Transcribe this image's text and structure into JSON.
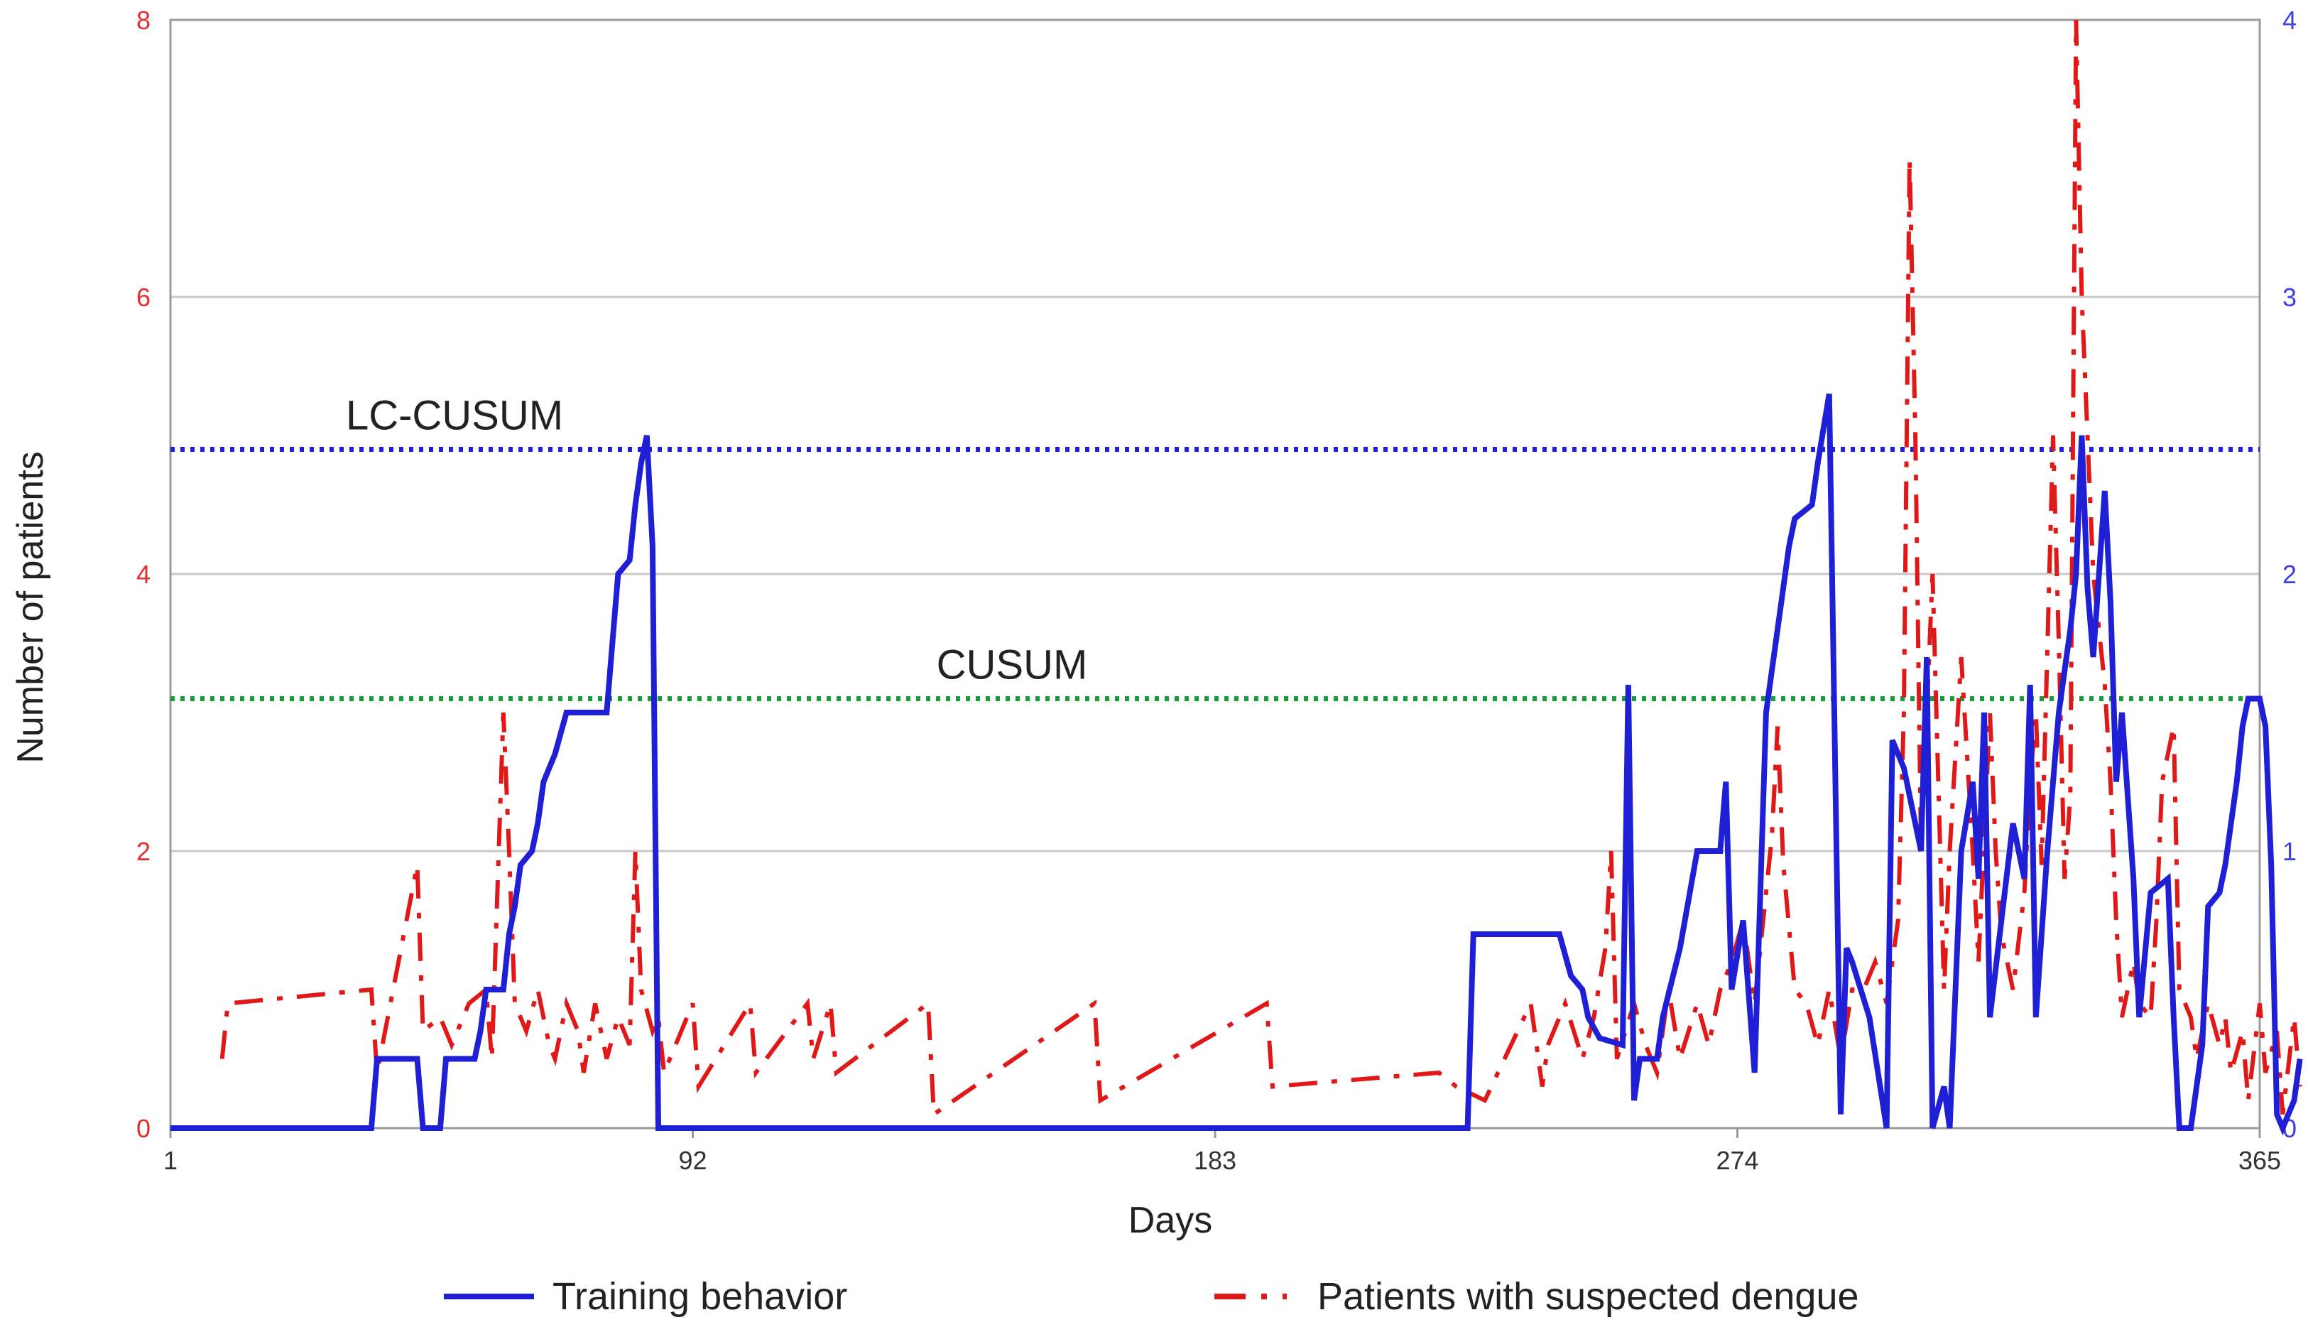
{
  "chart_data": {
    "type": "line",
    "title": "",
    "xlabel": "Days",
    "ylabel": "Number of patients",
    "xlim": [
      1,
      365
    ],
    "ylim_left": [
      0,
      8
    ],
    "ylim_right": [
      0,
      4
    ],
    "x_ticks": [
      "1",
      "92",
      "183",
      "274",
      "365"
    ],
    "y_ticks_left": [
      "0",
      "2",
      "4",
      "6",
      "8"
    ],
    "y_ticks_right": [
      "0",
      "1",
      "2",
      "3",
      "4"
    ],
    "grid": "horizontal",
    "legend_position": "bottom",
    "reference_lines": [
      {
        "label": "LC-CUSUM",
        "value": 4.9,
        "color": "#1f1fd6",
        "style": "dotted"
      },
      {
        "label": "CUSUM",
        "value": 3.1,
        "color": "#1a9a3a",
        "style": "dotted"
      }
    ],
    "series": [
      {
        "name": "Training behavior",
        "color": "#1f1fd6",
        "style": "solid",
        "points": [
          [
            1,
            0
          ],
          [
            36,
            0
          ],
          [
            37,
            0.5
          ],
          [
            38,
            0.5
          ],
          [
            44,
            0.5
          ],
          [
            45,
            0
          ],
          [
            48,
            0
          ],
          [
            49,
            0.5
          ],
          [
            54,
            0.5
          ],
          [
            55,
            0.7
          ],
          [
            56,
            1
          ],
          [
            59,
            1
          ],
          [
            60,
            1.4
          ],
          [
            61,
            1.6
          ],
          [
            62,
            1.9
          ],
          [
            64,
            2
          ],
          [
            65,
            2.2
          ],
          [
            66,
            2.5
          ],
          [
            68,
            2.7
          ],
          [
            70,
            3.0
          ],
          [
            77,
            3.0
          ],
          [
            78,
            3.5
          ],
          [
            79,
            4
          ],
          [
            81,
            4.1
          ],
          [
            82,
            4.5
          ],
          [
            83,
            4.8
          ],
          [
            84,
            5.0
          ],
          [
            85,
            4.2
          ],
          [
            86,
            0
          ],
          [
            227,
            0
          ],
          [
            228,
            1.4
          ],
          [
            243,
            1.4
          ],
          [
            245,
            1.1
          ],
          [
            247,
            1.0
          ],
          [
            248,
            0.8
          ],
          [
            250,
            0.65
          ],
          [
            254,
            0.6
          ],
          [
            255,
            3.2
          ],
          [
            256,
            0.2
          ],
          [
            257,
            0.5
          ],
          [
            260,
            0.5
          ],
          [
            261,
            0.8
          ],
          [
            264,
            1.3
          ],
          [
            267,
            2.0
          ],
          [
            271,
            2.0
          ],
          [
            272,
            2.5
          ],
          [
            273,
            1.0
          ],
          [
            275,
            1.5
          ],
          [
            277,
            0.4
          ],
          [
            279,
            3.0
          ],
          [
            283,
            4.2
          ],
          [
            284,
            4.4
          ],
          [
            287,
            4.5
          ],
          [
            288,
            4.8
          ],
          [
            290,
            5.3
          ],
          [
            292,
            0.1
          ],
          [
            293,
            1.3
          ],
          [
            294,
            1.2
          ],
          [
            297,
            0.8
          ],
          [
            300,
            0
          ],
          [
            301,
            2.8
          ],
          [
            303,
            2.6
          ],
          [
            306,
            2.0
          ],
          [
            307,
            3.4
          ],
          [
            308,
            0
          ],
          [
            310,
            0.3
          ],
          [
            311,
            0
          ],
          [
            313,
            2.0
          ],
          [
            315,
            2.5
          ],
          [
            316,
            1.8
          ],
          [
            317,
            3.0
          ],
          [
            318,
            0.8
          ],
          [
            320,
            1.5
          ],
          [
            322,
            2.2
          ],
          [
            324,
            1.8
          ],
          [
            325,
            3.2
          ],
          [
            326,
            0.8
          ],
          [
            328,
            2.0
          ],
          [
            330,
            3.0
          ],
          [
            332,
            3.6
          ],
          [
            333,
            4.0
          ],
          [
            334,
            5.0
          ],
          [
            335,
            3.9
          ],
          [
            336,
            3.4
          ],
          [
            337,
            4.0
          ],
          [
            338,
            4.6
          ],
          [
            339,
            3.8
          ],
          [
            340,
            2.5
          ],
          [
            341,
            3.0
          ],
          [
            343,
            1.8
          ],
          [
            344,
            0.8
          ],
          [
            346,
            1.7
          ],
          [
            349,
            1.8
          ],
          [
            350,
            0.8
          ],
          [
            351,
            0
          ],
          [
            353,
            0
          ],
          [
            355,
            0.6
          ],
          [
            356,
            1.6
          ],
          [
            358,
            1.7
          ],
          [
            359,
            1.9
          ],
          [
            361,
            2.5
          ],
          [
            362,
            2.9
          ],
          [
            363,
            3.1
          ],
          [
            365,
            3.1
          ],
          [
            366,
            2.9
          ],
          [
            367,
            1.9
          ],
          [
            368,
            0.1
          ],
          [
            369,
            0
          ],
          [
            371,
            0.2
          ],
          [
            372,
            0.5
          ]
        ]
      },
      {
        "name": "Patients with suspected dengue",
        "color": "#e01818",
        "style": "dash-dot",
        "points": [
          [
            10,
            0.5
          ],
          [
            11,
            0.9
          ],
          [
            36,
            1
          ],
          [
            37,
            0.4
          ],
          [
            44,
            1.9
          ],
          [
            45,
            0.7
          ],
          [
            48,
            0.8
          ],
          [
            50,
            0.6
          ],
          [
            53,
            0.9
          ],
          [
            56,
            1.0
          ],
          [
            57,
            0.5
          ],
          [
            59,
            3.0
          ],
          [
            60,
            2.0
          ],
          [
            61,
            0.9
          ],
          [
            63,
            0.7
          ],
          [
            65,
            1.0
          ],
          [
            67,
            0.6
          ],
          [
            68,
            0.5
          ],
          [
            70,
            0.9
          ],
          [
            72,
            0.7
          ],
          [
            73,
            0.4
          ],
          [
            75,
            0.9
          ],
          [
            77,
            0.5
          ],
          [
            79,
            0.8
          ],
          [
            81,
            0.6
          ],
          [
            82,
            2.0
          ],
          [
            83,
            1.0
          ],
          [
            85,
            0.7
          ],
          [
            86,
            0.8
          ],
          [
            87,
            0.4
          ],
          [
            88,
            0.5
          ],
          [
            92,
            0.9
          ],
          [
            93,
            0.3
          ],
          [
            102,
            0.9
          ],
          [
            103,
            0.4
          ],
          [
            112,
            0.9
          ],
          [
            113,
            0.5
          ],
          [
            116,
            0.9
          ],
          [
            117,
            0.4
          ],
          [
            133,
            0.9
          ],
          [
            134,
            0.1
          ],
          [
            162,
            0.9
          ],
          [
            163,
            0.2
          ],
          [
            192,
            0.9
          ],
          [
            193,
            0.3
          ],
          [
            222,
            0.4
          ],
          [
            225,
            0.3
          ],
          [
            230,
            0.2
          ],
          [
            238,
            0.9
          ],
          [
            240,
            0.3
          ],
          [
            241,
            0.6
          ],
          [
            244,
            0.9
          ],
          [
            247,
            0.5
          ],
          [
            249,
            0.8
          ],
          [
            251,
            1.3
          ],
          [
            252,
            2.0
          ],
          [
            253,
            0.5
          ],
          [
            256,
            0.9
          ],
          [
            258,
            0.6
          ],
          [
            260,
            0.4
          ],
          [
            262,
            1.0
          ],
          [
            264,
            0.5
          ],
          [
            267,
            0.9
          ],
          [
            269,
            0.6
          ],
          [
            271,
            1.0
          ],
          [
            273,
            1.2
          ],
          [
            275,
            1.5
          ],
          [
            277,
            0.9
          ],
          [
            278,
            1.3
          ],
          [
            280,
            2.1
          ],
          [
            281,
            2.9
          ],
          [
            282,
            1.9
          ],
          [
            284,
            1.0
          ],
          [
            286,
            0.9
          ],
          [
            288,
            0.6
          ],
          [
            290,
            1.0
          ],
          [
            292,
            0.5
          ],
          [
            294,
            1.0
          ],
          [
            296,
            1.0
          ],
          [
            298,
            1.2
          ],
          [
            300,
            0.9
          ],
          [
            302,
            1.5
          ],
          [
            303,
            3.0
          ],
          [
            304,
            7.0
          ],
          [
            305,
            5.0
          ],
          [
            306,
            2.0
          ],
          [
            308,
            4.0
          ],
          [
            309,
            2.5
          ],
          [
            310,
            1.0
          ],
          [
            311,
            2.0
          ],
          [
            313,
            3.4
          ],
          [
            315,
            2.0
          ],
          [
            316,
            1.2
          ],
          [
            318,
            3.0
          ],
          [
            319,
            2.0
          ],
          [
            320,
            1.4
          ],
          [
            322,
            1.0
          ],
          [
            324,
            1.7
          ],
          [
            325,
            2.5
          ],
          [
            326,
            3.0
          ],
          [
            327,
            1.9
          ],
          [
            329,
            5.0
          ],
          [
            330,
            3.5
          ],
          [
            331,
            1.8
          ],
          [
            332,
            2.4
          ],
          [
            333,
            8.0
          ],
          [
            334,
            6.0
          ],
          [
            335,
            5.0
          ],
          [
            336,
            4.0
          ],
          [
            338,
            3.2
          ],
          [
            339,
            2.5
          ],
          [
            340,
            1.5
          ],
          [
            341,
            0.8
          ],
          [
            343,
            1.2
          ],
          [
            344,
            0.9
          ],
          [
            346,
            0.8
          ],
          [
            347,
            1.5
          ],
          [
            348,
            2.5
          ],
          [
            350,
            2.9
          ],
          [
            351,
            1.0
          ],
          [
            353,
            0.8
          ],
          [
            354,
            0.5
          ],
          [
            356,
            0.9
          ],
          [
            358,
            0.6
          ],
          [
            359,
            0.8
          ],
          [
            360,
            0.4
          ],
          [
            362,
            0.7
          ],
          [
            363,
            0.2
          ],
          [
            365,
            0.9
          ],
          [
            366,
            0.4
          ],
          [
            368,
            0.7
          ],
          [
            369,
            0.1
          ],
          [
            371,
            0.8
          ],
          [
            372,
            0.3
          ]
        ]
      }
    ]
  }
}
